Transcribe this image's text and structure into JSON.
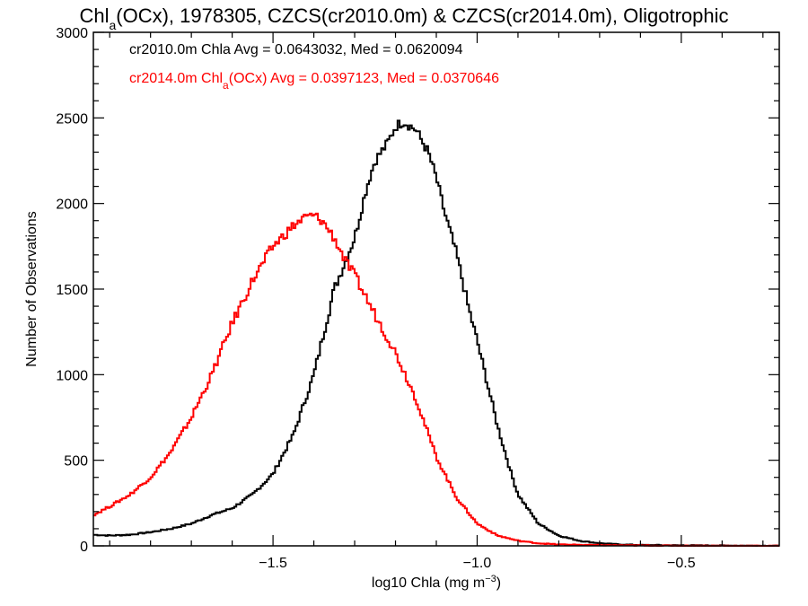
{
  "chart_data": {
    "type": "line",
    "title": {
      "prefix": "Chl",
      "subscript": "a",
      "rest": "(OCx), 1978305, CZCS(cr2010.0m) & CZCS(cr2014.0m), Oligotrophic"
    },
    "xlabel": {
      "main": "log10 Chla (mg m",
      "sup": "−3",
      "close": ")"
    },
    "ylabel": "Number of Observations",
    "xlim": [
      -1.94,
      -0.26
    ],
    "ylim": [
      0,
      3000
    ],
    "xticks": [
      -1.5,
      -1.0,
      -0.5
    ],
    "xtick_labels": [
      "−1.5",
      "−1.0",
      "−0.5"
    ],
    "yticks": [
      0,
      500,
      1000,
      1500,
      2000,
      2500,
      3000
    ],
    "ytick_labels": [
      "0",
      "500",
      "1000",
      "1500",
      "2000",
      "2500",
      "3000"
    ],
    "grid": false,
    "annotations": [
      {
        "color": "#000000",
        "parts": [
          "cr2010.0m Chla Avg = 0.0643032, Med = 0.0620094"
        ]
      },
      {
        "color": "#ff0000",
        "parts": [
          "cr2014.0m Chl",
          "a",
          "(OCx) Avg = 0.0397123, Med = 0.0370646"
        ]
      }
    ],
    "series": [
      {
        "color": "#000000",
        "x": [
          -1.94,
          -1.9,
          -1.85,
          -1.8,
          -1.75,
          -1.7,
          -1.65,
          -1.6,
          -1.55,
          -1.5,
          -1.45,
          -1.4,
          -1.35,
          -1.3,
          -1.27,
          -1.25,
          -1.22,
          -1.2,
          -1.18,
          -1.15,
          -1.12,
          -1.1,
          -1.08,
          -1.05,
          -1.02,
          -1.0,
          -0.98,
          -0.95,
          -0.92,
          -0.9,
          -0.85,
          -0.8,
          -0.75,
          -0.7,
          -0.65,
          -0.6,
          -0.5,
          -0.4,
          -0.26
        ],
        "y": [
          65,
          60,
          65,
          80,
          100,
          130,
          180,
          220,
          300,
          420,
          650,
          1000,
          1500,
          1800,
          2100,
          2250,
          2350,
          2450,
          2480,
          2430,
          2300,
          2150,
          1950,
          1700,
          1380,
          1200,
          1000,
          700,
          450,
          300,
          130,
          60,
          30,
          15,
          8,
          5,
          3,
          2,
          0
        ]
      },
      {
        "color": "#ff0000",
        "x": [
          -1.94,
          -1.9,
          -1.85,
          -1.8,
          -1.75,
          -1.7,
          -1.65,
          -1.6,
          -1.55,
          -1.5,
          -1.45,
          -1.42,
          -1.4,
          -1.38,
          -1.35,
          -1.32,
          -1.3,
          -1.25,
          -1.2,
          -1.15,
          -1.1,
          -1.05,
          -1.0,
          -0.95,
          -0.9,
          -0.85,
          -0.8,
          -0.7,
          -0.6,
          -0.5,
          -0.26
        ],
        "y": [
          180,
          230,
          300,
          400,
          550,
          750,
          1000,
          1300,
          1550,
          1750,
          1870,
          1920,
          1930,
          1900,
          1800,
          1650,
          1580,
          1350,
          1130,
          860,
          520,
          280,
          130,
          60,
          30,
          15,
          8,
          4,
          2,
          1,
          0
        ]
      }
    ]
  }
}
